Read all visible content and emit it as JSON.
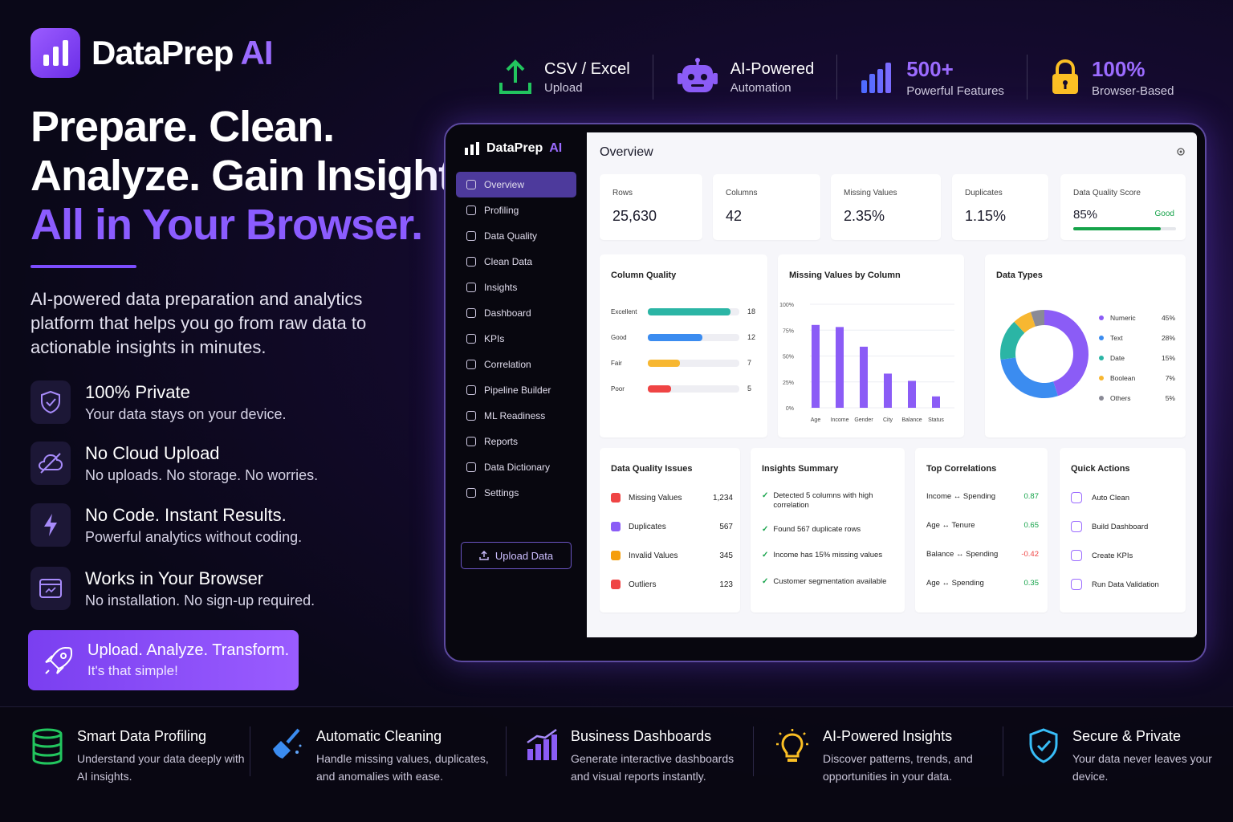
{
  "brand": {
    "name": "DataPrep",
    "suffix": "AI"
  },
  "hero": {
    "line1": "Prepare. Clean.",
    "line2": "Analyze. Gain Insights.",
    "line3": "All in Your Browser.",
    "subtitle": "AI-powered data preparation and analytics platform that helps you go from raw data to actionable insights in minutes."
  },
  "features": [
    {
      "icon": "shield-check-icon",
      "title": "100% Private",
      "desc": "Your data stays on your device."
    },
    {
      "icon": "no-cloud-icon",
      "title": "No Cloud Upload",
      "desc": "No uploads. No storage. No worries."
    },
    {
      "icon": "lightning-icon",
      "title": "No Code. Instant Results.",
      "desc": "Powerful analytics without coding."
    },
    {
      "icon": "browser-icon",
      "title": "Works in Your Browser",
      "desc": "No installation. No sign-up required."
    }
  ],
  "cta": {
    "title": "Upload. Analyze. Transform.",
    "subtitle": "It's that simple!"
  },
  "top_stats": [
    {
      "icon": "upload-icon",
      "title": "CSV / Excel",
      "desc": "Upload"
    },
    {
      "icon": "robot-icon",
      "title": "AI-Powered",
      "desc": "Automation"
    },
    {
      "icon": "bar-chart-icon",
      "title": "500+",
      "desc": "Powerful Features"
    },
    {
      "icon": "lock-icon",
      "title": "100%",
      "desc": "Browser-Based"
    }
  ],
  "app": {
    "sidebar": {
      "brand": "DataPrep",
      "brand_suffix": "AI",
      "items": [
        "Overview",
        "Profiling",
        "Data Quality",
        "Clean Data",
        "Insights",
        "Dashboard",
        "KPIs",
        "Correlation",
        "Pipeline Builder",
        "ML Readiness",
        "Reports",
        "Data Dictionary",
        "Settings"
      ],
      "upload_label": "Upload Data"
    },
    "title": "Overview",
    "metrics": [
      {
        "label": "Rows",
        "value": "25,630"
      },
      {
        "label": "Columns",
        "value": "42"
      },
      {
        "label": "Missing Values",
        "value": "2.35%"
      },
      {
        "label": "Duplicates",
        "value": "1.15%"
      }
    ],
    "quality_score": {
      "label": "Data Quality Score",
      "value": "85%",
      "status": "Good",
      "fraction": 0.85
    },
    "column_quality": {
      "title": "Column Quality",
      "rows": [
        {
          "label": "Excellent",
          "value": 18,
          "color": "#2bb5a5"
        },
        {
          "label": "Good",
          "value": 12,
          "color": "#3b8cf0"
        },
        {
          "label": "Fair",
          "value": 7,
          "color": "#f7b731"
        },
        {
          "label": "Poor",
          "value": 5,
          "color": "#ef4444"
        }
      ]
    },
    "data_quality_issues": {
      "title": "Data Quality Issues",
      "rows": [
        {
          "label": "Missing Values",
          "value": "1,234",
          "color": "#ef4444"
        },
        {
          "label": "Duplicates",
          "value": "567",
          "color": "#8b5cf6"
        },
        {
          "label": "Invalid Values",
          "value": "345",
          "color": "#f59e0b"
        },
        {
          "label": "Outliers",
          "value": "123",
          "color": "#ef4444"
        }
      ]
    },
    "insights": {
      "title": "Insights Summary",
      "rows": [
        "Detected 5 columns with high correlation",
        "Found 567 duplicate rows",
        "Income has 15% missing values",
        "Customer segmentation available"
      ]
    },
    "correlations": {
      "title": "Top Correlations",
      "rows": [
        {
          "pair": "Income ↔ Spending",
          "value": "0.87",
          "color": "#16a34a"
        },
        {
          "pair": "Age ↔ Tenure",
          "value": "0.65",
          "color": "#16a34a"
        },
        {
          "pair": "Balance ↔ Spending",
          "value": "-0.42",
          "color": "#ef4444"
        },
        {
          "pair": "Age ↔ Spending",
          "value": "0.35",
          "color": "#16a34a"
        }
      ]
    },
    "quick_actions": {
      "title": "Quick Actions",
      "rows": [
        "Auto Clean",
        "Build Dashboard",
        "Create KPIs",
        "Run Data Validation"
      ]
    }
  },
  "chart_data": [
    {
      "type": "bar",
      "title": "Missing Values by Column",
      "categories": [
        "Age",
        "Income",
        "Gender",
        "City",
        "Balance",
        "Status"
      ],
      "values": [
        80,
        78,
        59,
        33,
        26,
        11
      ],
      "ylim": [
        0,
        100
      ],
      "ytick_labels": [
        "0%",
        "25%",
        "50%",
        "75%",
        "100%"
      ],
      "color": "#8b5cf6"
    },
    {
      "type": "pie",
      "title": "Data Types",
      "labels": [
        "Numeric",
        "Text",
        "Date",
        "Boolean",
        "Others"
      ],
      "values": [
        45,
        28,
        15,
        7,
        5
      ],
      "value_labels": [
        "45%",
        "28%",
        "15%",
        "7%",
        "5%"
      ],
      "colors": [
        "#8b5cf6",
        "#3b8cf0",
        "#2bb5a5",
        "#f7b731",
        "#8a8a96"
      ]
    }
  ],
  "bottom_features": [
    {
      "icon": "database-icon",
      "title": "Smart Data Profiling",
      "desc": "Understand your data deeply with AI insights."
    },
    {
      "icon": "broom-icon",
      "title": "Automatic Cleaning",
      "desc": "Handle missing values, duplicates, and anomalies with ease."
    },
    {
      "icon": "dashboard-chart-icon",
      "title": "Business Dashboards",
      "desc": "Generate interactive dashboards and visual reports instantly."
    },
    {
      "icon": "lightbulb-icon",
      "title": "AI-Powered Insights",
      "desc": "Discover patterns, trends, and opportunities in your data."
    },
    {
      "icon": "shield-icon",
      "title": "Secure & Private",
      "desc": "Your data never leaves your device."
    }
  ]
}
